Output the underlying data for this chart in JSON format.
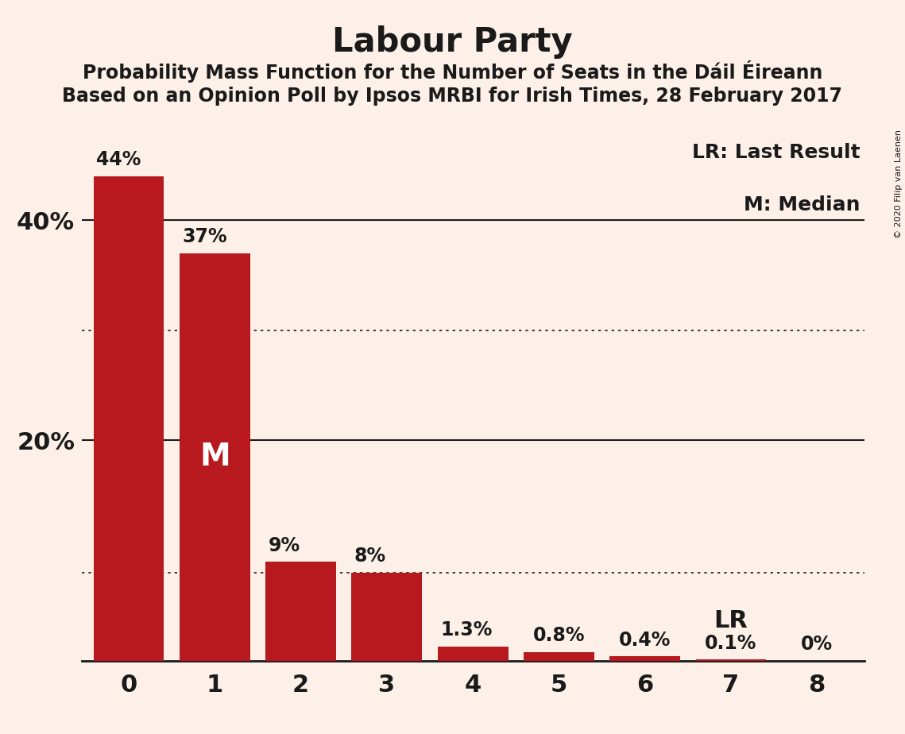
{
  "title": "Labour Party",
  "subtitle1": "Probability Mass Function for the Number of Seats in the Dáil Éireann",
  "subtitle2": "Based on an Opinion Poll by Ipsos MRBI for Irish Times, 28 February 2017",
  "copyright": "© 2020 Filip van Laenen",
  "categories": [
    0,
    1,
    2,
    3,
    4,
    5,
    6,
    7,
    8
  ],
  "values": [
    44,
    37,
    9,
    8,
    1.3,
    0.8,
    0.4,
    0.1,
    0
  ],
  "labels": [
    "44%",
    "37%",
    "9%",
    "8%",
    "1.3%",
    "0.8%",
    "0.4%",
    "0.1%",
    "0%"
  ],
  "bar_color": "#B8191F",
  "background_color": "#FDF0E8",
  "text_color": "#1A1A1A",
  "ylim": [
    0,
    48
  ],
  "yticks": [
    20,
    40
  ],
  "ytick_labels": [
    "20%",
    "40%"
  ],
  "solid_hlines": [
    40,
    20
  ],
  "dotted_hlines": [
    30,
    8
  ],
  "median_bar": 1,
  "median_label": "M",
  "lr_bar": 7,
  "lr_label": "LR",
  "legend_lr": "LR: Last Result",
  "legend_m": "M: Median",
  "title_fontsize": 30,
  "subtitle_fontsize": 17,
  "label_fontsize": 17,
  "axis_fontsize": 22,
  "median_fontsize": 28,
  "lr_fontsize": 22,
  "legend_fontsize": 18,
  "bar_width": 0.82
}
